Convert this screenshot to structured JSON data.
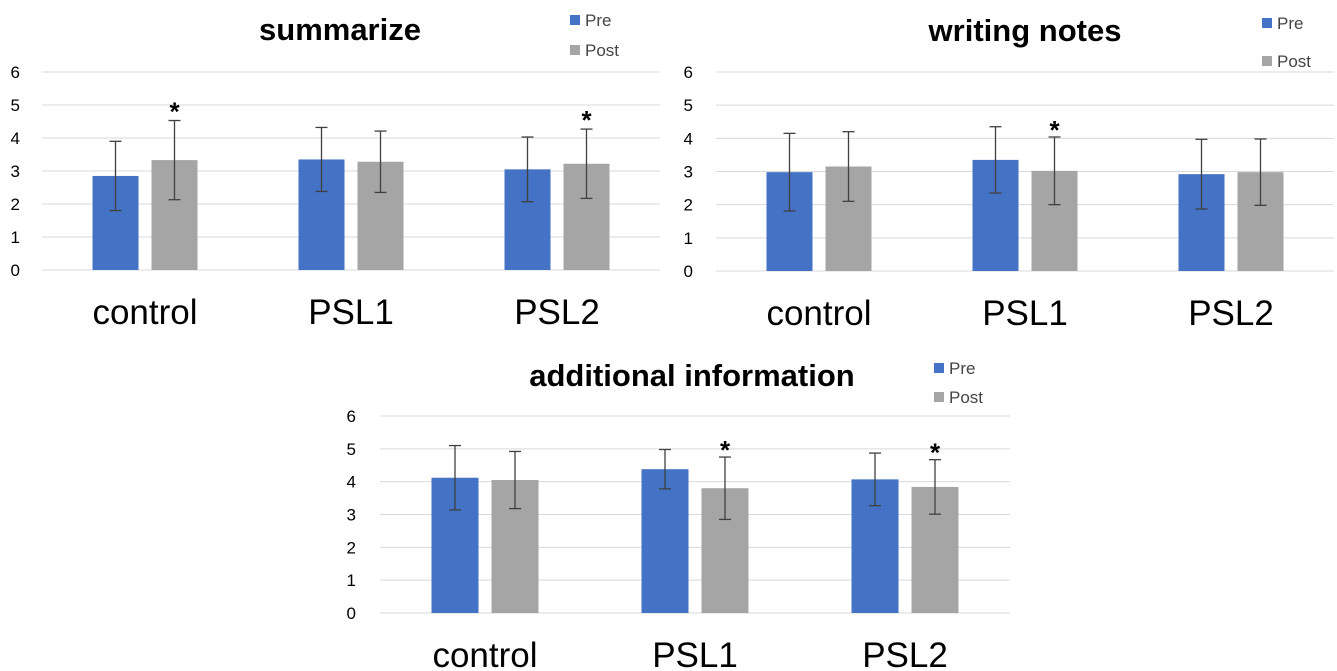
{
  "chart_data": [
    {
      "type": "bar",
      "title": "summarize",
      "categories": [
        "control",
        "PSL1",
        "PSL2"
      ],
      "ylim": [
        0,
        6
      ],
      "yticks": [
        "0",
        "1",
        "2",
        "3",
        "4",
        "5",
        "6"
      ],
      "grid": true,
      "legend_position": "top-right",
      "series": [
        {
          "name": "Pre",
          "color": "#4472c4",
          "values": [
            2.85,
            3.35,
            3.05
          ],
          "error": [
            1.05,
            0.97,
            0.98
          ]
        },
        {
          "name": "Post",
          "color": "#a5a5a5",
          "values": [
            3.33,
            3.28,
            3.22
          ],
          "error": [
            1.2,
            0.93,
            1.05
          ]
        }
      ],
      "annotations": [
        {
          "category": 0,
          "series": 1,
          "text": "*"
        },
        {
          "category": 2,
          "series": 1,
          "text": "*"
        }
      ]
    },
    {
      "type": "bar",
      "title": "writing notes",
      "categories": [
        "control",
        "PSL1",
        "PSL2"
      ],
      "ylim": [
        0,
        6
      ],
      "yticks": [
        "0",
        "1",
        "2",
        "3",
        "4",
        "5",
        "6"
      ],
      "grid": true,
      "legend_position": "top-right",
      "series": [
        {
          "name": "Pre",
          "color": "#4472c4",
          "values": [
            2.98,
            3.35,
            2.92
          ],
          "error": [
            1.17,
            1.0,
            1.05
          ]
        },
        {
          "name": "Post",
          "color": "#a5a5a5",
          "values": [
            3.15,
            3.02,
            2.98
          ],
          "error": [
            1.05,
            1.02,
            1.0
          ]
        }
      ],
      "annotations": [
        {
          "category": 1,
          "series": 1,
          "text": "*"
        }
      ]
    },
    {
      "type": "bar",
      "title": "additional information",
      "categories": [
        "control",
        "PSL1",
        "PSL2"
      ],
      "ylim": [
        0,
        6
      ],
      "yticks": [
        "0",
        "1",
        "2",
        "3",
        "4",
        "5",
        "6"
      ],
      "grid": true,
      "legend_position": "top-right",
      "series": [
        {
          "name": "Pre",
          "color": "#4472c4",
          "values": [
            4.12,
            4.38,
            4.07
          ],
          "error": [
            0.98,
            0.6,
            0.8
          ]
        },
        {
          "name": "Post",
          "color": "#a5a5a5",
          "values": [
            4.05,
            3.8,
            3.84
          ],
          "error": [
            0.87,
            0.95,
            0.83
          ]
        }
      ],
      "annotations": [
        {
          "category": 1,
          "series": 1,
          "text": "*"
        },
        {
          "category": 2,
          "series": 1,
          "text": "*"
        }
      ]
    }
  ]
}
